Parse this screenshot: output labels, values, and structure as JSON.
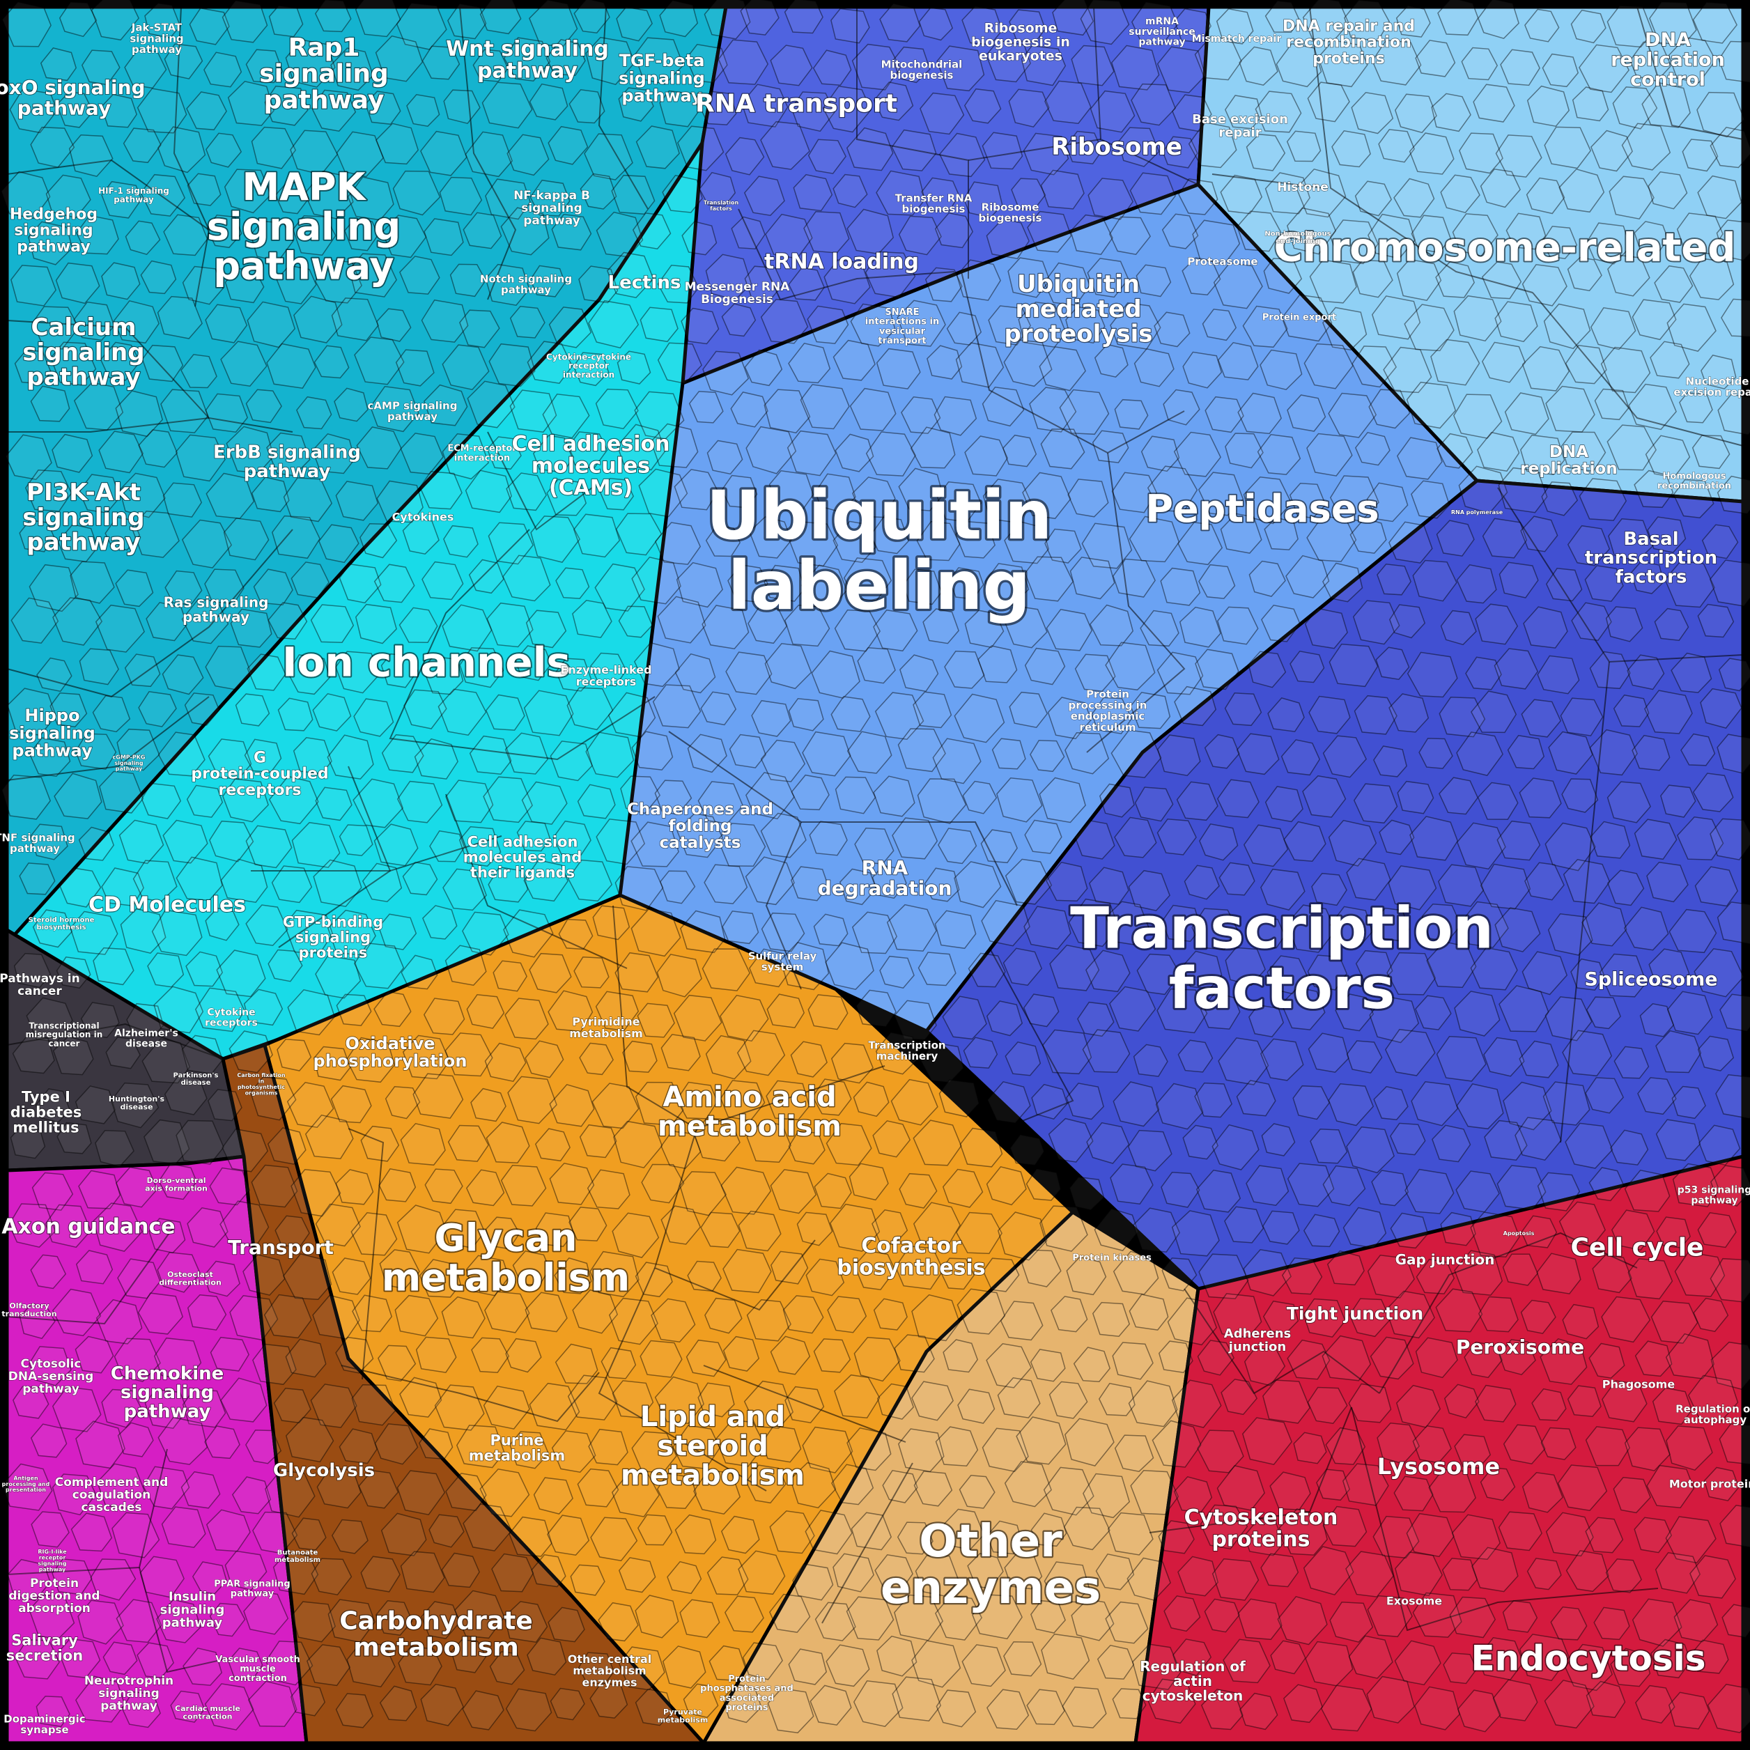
{
  "major_labels": {
    "ubiquitin": "Ubiquitin labeling",
    "transcription": "Transcription factors",
    "ion": "Ion channels",
    "mapk": "MAPK signaling pathway",
    "glycan": "Glycan metabolism",
    "other_enzymes": "Other enzymes",
    "chromosome": "Chromosome-related",
    "peptidases": "Peptidases",
    "endocytosis": "Endocytosis"
  },
  "labels": {
    "rap1": "Rap1 signaling pathway",
    "wnt": "Wnt signaling pathway",
    "tgf": "TGF-beta signaling pathway",
    "jak": "Jak-STAT signaling pathway",
    "foxo": "FoxO signaling pathway",
    "hif": "HIF-1 signaling pathway",
    "hedgehog": "Hedgehog signaling pathway",
    "nfkb": "NF-kappa B signaling pathway",
    "notch": "Notch signaling pathway",
    "calcium": "Calcium signaling pathway",
    "camp": "cAMP signaling pathway",
    "erbb": "ErbB signaling pathway",
    "pi3k": "PI3K-Akt signaling pathway",
    "ras": "Ras signaling pathway",
    "hippo": "Hippo signaling pathway",
    "cgmp": "cGMP-PKG signaling pathway",
    "tnf": "TNF signaling pathway",
    "lectins": "Lectins",
    "cytokine_int": "Cytokine-cytokine receptor interaction",
    "ecm": "ECM-receptor interaction",
    "cams": "Cell adhesion molecules (CAMs)",
    "cytokines": "Cytokines",
    "enzyme_linked": "Enzyme-linked receptors",
    "gpcr": "G protein-coupled receptors",
    "cam_ligands": "Cell adhesion molecules and their ligands",
    "cd": "CD Molecules",
    "gtp": "GTP-binding signaling proteins",
    "steroid": "Steroid hormone biosynthesis",
    "cyt_receptors": "Cytokine receptors",
    "rna_transport": "RNA transport",
    "mito": "Mitochondrial biogenesis",
    "ribo_biogen": "Ribosome biogenesis in eukaryotes",
    "mrna_surv": "mRNA surveillance pathway",
    "ribosome": "Ribosome",
    "trna_loading": "tRNA loading",
    "transfer_rna": "Transfer RNA biogenesis",
    "ribo_biogenesis": "Ribosome biogenesis",
    "translation": "Translation factors",
    "messenger": "Messenger RNA Biogenesis",
    "snare": "SNARE interactions in vesicular transport",
    "ubiq_med": "Ubiquitin mediated proteolysis",
    "proteasome": "Proteasome",
    "protein_export": "Protein export",
    "chaperones": "Chaperones and folding catalysts",
    "rna_deg": "RNA degradation",
    "sulfur": "Sulfur relay system",
    "protein_proc": "Protein processing in endoplasmic reticulum",
    "mismatch": "Mismatch repair",
    "dna_repair": "DNA repair and recombination proteins",
    "dna_rep_control": "DNA replication control",
    "base_excision": "Base excision repair",
    "histone": "Histone",
    "nonhomol": "Non-homologous end-joining",
    "nucleotide_exc": "Nucleotide excision repair",
    "dna_replication": "DNA replication",
    "homologous": "Homologous recombination",
    "rna_pol": "RNA polymerase",
    "basal_tf": "Basal transcription factors",
    "spliceosome": "Spliceosome",
    "transcription_mach": "Transcription machinery",
    "pathways_cancer": "Pathways in cancer",
    "transcr_misreg": "Transcriptional misregulation in cancer",
    "alzheimers": "Alzheimer's disease",
    "huntington": "Huntington's disease",
    "parkinson": "Parkinson's disease",
    "type1": "Type I diabetes mellitus",
    "oxphos": "Oxidative phosphorylation",
    "pyrimidine": "Pyrimidine metabolism",
    "carbon_fix": "Carbon fixation in photosynthetic organisms",
    "amino_acid": "Amino acid metabolism",
    "transport": "Transport",
    "cofactor": "Cofactor biosynthesis",
    "protein_kinases": "Protein kinases",
    "glycolysis": "Glycolysis",
    "purine": "Purine metabolism",
    "lipid": "Lipid and steroid metabolism",
    "carbohydrate": "Carbohydrate metabolism",
    "butanoate": "Butanoate metabolism",
    "other_central": "Other central metabolism enzymes",
    "pyruvate": "Pyruvate metabolism",
    "phosphatase": "Protein phosphatases and associated proteins",
    "axon": "Axon guidance",
    "dorso": "Dorso-ventral axis formation",
    "osteoclast": "Osteoclast differentiation",
    "olfactory": "Olfactory transduction",
    "cytosolic_dna": "Cytosolic DNA-sensing pathway",
    "chemokine": "Chemokine signaling pathway",
    "antigen": "Antigen processing and presentation",
    "complement": "Complement and coagulation cascades",
    "rig": "RIG-I-like receptor signaling pathway",
    "protein_digestion": "Protein digestion and absorption",
    "insulin": "Insulin signaling pathway",
    "ppar": "PPAR signaling pathway",
    "salivary": "Salivary secretion",
    "neurotrophin": "Neurotrophin signaling pathway",
    "vascular": "Vascular smooth muscle contraction",
    "cardiac": "Cardiac muscle contraction",
    "dopaminergic": "Dopaminergic synapse",
    "p53": "p53 signaling pathway",
    "apoptosis": "Apoptosis",
    "cell_cycle": "Cell cycle",
    "gap": "Gap junction",
    "tight": "Tight junction",
    "adherens": "Adherens junction",
    "peroxisome": "Peroxisome",
    "phagosome": "Phagosome",
    "autophagy": "Regulation of autophagy",
    "lysosome": "Lysosome",
    "motor": "Motor proteins",
    "cytoskeleton": "Cytoskeleton proteins",
    "exosome": "Exosome",
    "actin": "Regulation of actin cytoskeleton"
  },
  "colors": {
    "signaling_cyan": "#12b9d6",
    "ion_cyan": "#14dde6",
    "ubiquitin_blue": "#6aa0f2",
    "rna_blue": "#4d66dd",
    "chromosome_light": "#8fd0f5",
    "transcription_indigo": "#3f4fcf",
    "metabolism_orange": "#f0a020",
    "brown": "#9a4c12",
    "tan": "#e6b46e",
    "magenta": "#d820c8",
    "red": "#d81840",
    "disease_dark": "#3a3640"
  }
}
